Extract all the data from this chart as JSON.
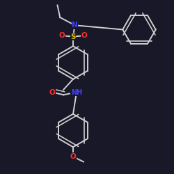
{
  "background_color": "#181828",
  "bond_color": "#d0d0d0",
  "atom_colors": {
    "N": "#4040ff",
    "O": "#ff3030",
    "S": "#e0c020",
    "C": "#d0d0d0"
  },
  "figsize": [
    2.5,
    2.5
  ],
  "dpi": 100,
  "ring_r": 0.095,
  "lw": 1.4
}
